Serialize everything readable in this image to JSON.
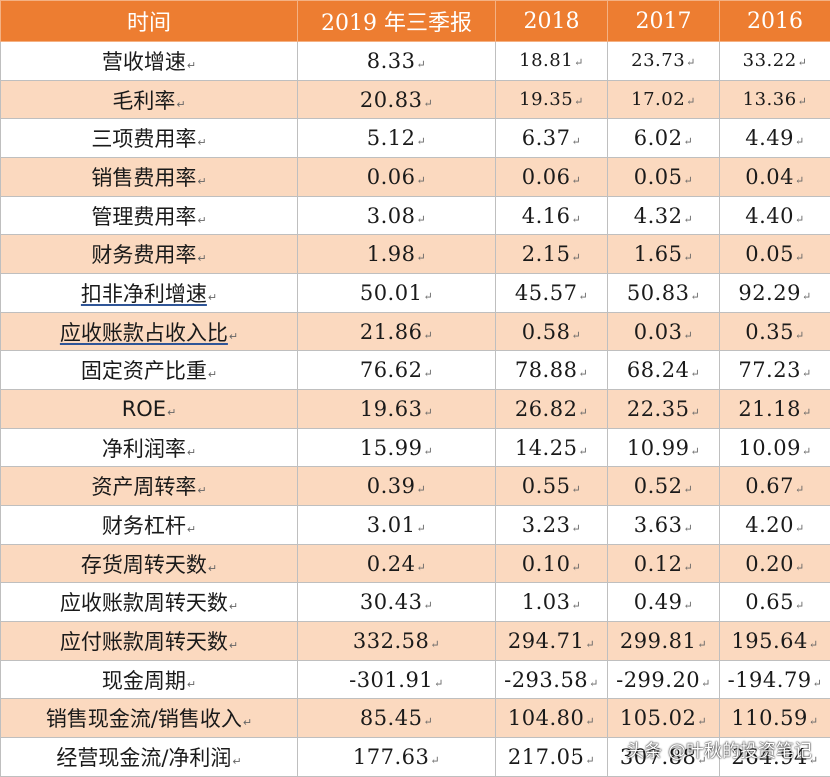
{
  "header": [
    "时间",
    "2019 年三季报",
    "2018",
    "2017",
    "2016"
  ],
  "rows": [
    {
      "label": "营收增速",
      "values": [
        "8.33",
        "18.81",
        "23.73",
        "33.22"
      ]
    },
    {
      "label": "毛利率",
      "values": [
        "20.83",
        "19.35",
        "17.02",
        "13.36"
      ]
    },
    {
      "label": "三项费用率",
      "values": [
        "5.12",
        "6.37",
        "6.02",
        "4.49"
      ]
    },
    {
      "label": "销售费用率",
      "values": [
        "0.06",
        "0.06",
        "0.05",
        "0.04"
      ]
    },
    {
      "label": "管理费用率",
      "values": [
        "3.08",
        "4.16",
        "4.32",
        "4.40"
      ]
    },
    {
      "label": "财务费用率",
      "values": [
        "1.98",
        "2.15",
        "1.65",
        "0.05"
      ]
    },
    {
      "label": "扣非净利增速",
      "values": [
        "50.01",
        "45.57",
        "50.83",
        "92.29"
      ]
    },
    {
      "label": "应收账款占收入比",
      "values": [
        "21.86",
        "0.58",
        "0.03",
        "0.35"
      ]
    },
    {
      "label": "固定资产比重",
      "values": [
        "76.62",
        "78.88",
        "68.24",
        "77.23"
      ]
    },
    {
      "label": "ROE",
      "values": [
        "19.63",
        "26.82",
        "22.35",
        "21.18"
      ]
    },
    {
      "label": "净利润率",
      "values": [
        "15.99",
        "14.25",
        "10.99",
        "10.09"
      ]
    },
    {
      "label": "资产周转率",
      "values": [
        "0.39",
        "0.55",
        "0.52",
        "0.67"
      ]
    },
    {
      "label": "财务杠杆",
      "values": [
        "3.01",
        "3.23",
        "3.63",
        "4.20"
      ]
    },
    {
      "label": "存货周转天数",
      "values": [
        "0.24",
        "0.10",
        "0.12",
        "0.20"
      ]
    },
    {
      "label": "应收账款周转天数",
      "values": [
        "30.43",
        "1.03",
        "0.49",
        "0.65"
      ]
    },
    {
      "label": "应付账款周转天数",
      "values": [
        "332.58",
        "294.71",
        "299.81",
        "195.64"
      ]
    },
    {
      "label": "现金周期",
      "values": [
        "-301.91",
        "-293.58",
        "-299.20",
        "-194.79"
      ]
    },
    {
      "label": "销售现金流/销售收入",
      "values": [
        "85.45",
        "104.80",
        "105.02",
        "110.59"
      ]
    },
    {
      "label": "经营现金流/净利润",
      "values": [
        "177.63",
        "217.05",
        "307.88",
        "264.94"
      ]
    }
  ],
  "watermark": "头条 @叶秋的投资笔记",
  "colors": {
    "header_bg": "#ed7d31",
    "band_bg": "#fbd9bf",
    "header_text": "#ffffff"
  }
}
